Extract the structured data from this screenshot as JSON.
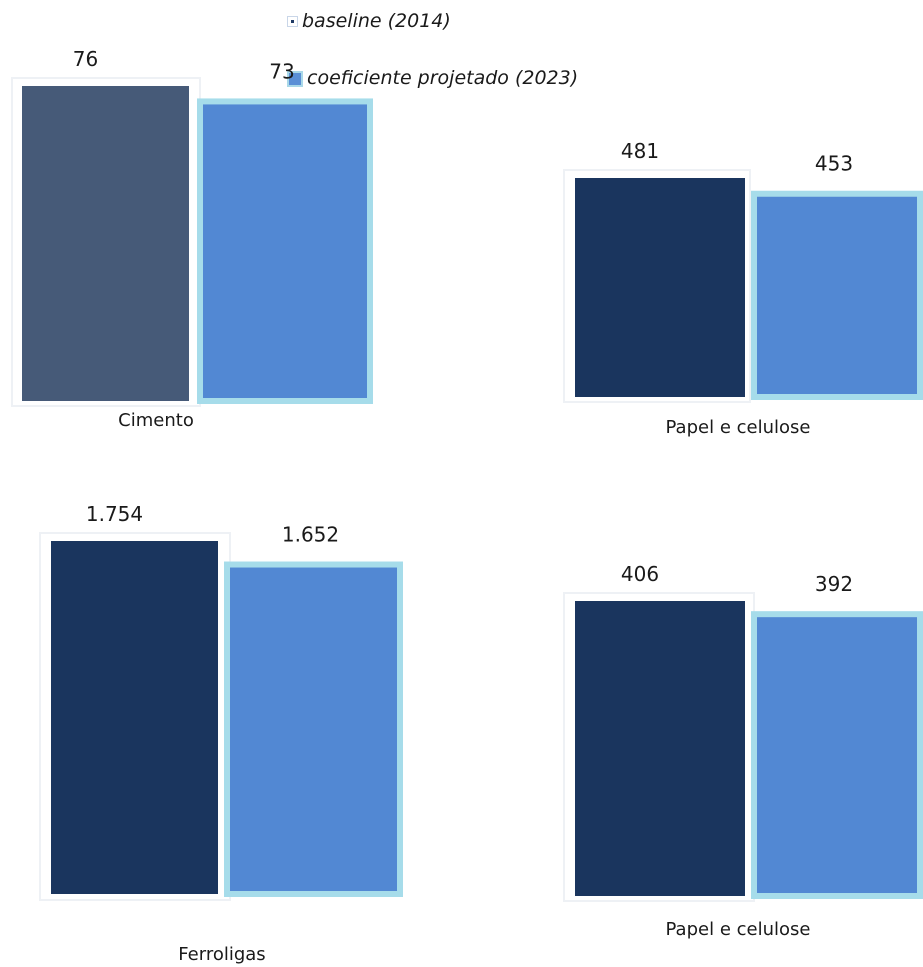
{
  "legend": {
    "baseline": "baseline (2014)",
    "projected": "coeficiente projetado (2023)"
  },
  "colors": {
    "baseline": "#1a355e",
    "baseline_first": "#465a78",
    "projected": "#5288d3",
    "projected_border": "#a6dcea"
  },
  "chart_data": [
    {
      "type": "bar",
      "category": "Cimento",
      "series": [
        {
          "name": "baseline (2014)",
          "value": 76,
          "label": "76"
        },
        {
          "name": "coeficiente projetado (2023)",
          "value": 73,
          "label": "73"
        }
      ]
    },
    {
      "type": "bar",
      "category": "Papel e celulose",
      "series": [
        {
          "name": "baseline (2014)",
          "value": 481,
          "label": "481"
        },
        {
          "name": "coeficiente projetado (2023)",
          "value": 453,
          "label": "453"
        }
      ]
    },
    {
      "type": "bar",
      "category": "Ferroligas",
      "series": [
        {
          "name": "baseline (2014)",
          "value": 1754,
          "label": "1.754"
        },
        {
          "name": "coeficiente projetado (2023)",
          "value": 1652,
          "label": "1.652"
        }
      ]
    },
    {
      "type": "bar",
      "category": "Papel e celulose",
      "series": [
        {
          "name": "baseline (2014)",
          "value": 406,
          "label": "406"
        },
        {
          "name": "coeficiente projetado (2023)",
          "value": 392,
          "label": "392"
        }
      ]
    }
  ]
}
